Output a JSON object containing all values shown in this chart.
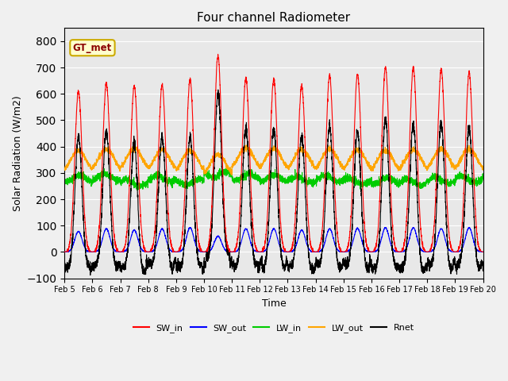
{
  "title": "Four channel Radiometer",
  "xlabel": "Time",
  "ylabel": "Solar Radiation (W/m2)",
  "ylim": [
    -100,
    850
  ],
  "yticks": [
    -100,
    0,
    100,
    200,
    300,
    400,
    500,
    600,
    700,
    800
  ],
  "start_day": 5,
  "end_day": 20,
  "n_days": 15,
  "points_per_day": 288,
  "colors": {
    "SW_in": "#ff0000",
    "SW_out": "#0000ff",
    "LW_in": "#00cc00",
    "LW_out": "#ffa500",
    "Rnet": "#000000"
  },
  "legend_label": "GT_met",
  "background_color": "#e8e8e8",
  "SW_in_peaks": [
    610,
    640,
    630,
    635,
    655,
    745,
    660,
    655,
    630,
    670,
    675,
    700,
    700,
    695,
    680
  ],
  "SW_out_peaks": [
    78,
    88,
    83,
    88,
    92,
    60,
    88,
    88,
    83,
    88,
    90,
    92,
    92,
    88,
    92
  ],
  "LW_in_base": [
    278,
    285,
    262,
    278,
    265,
    295,
    285,
    280,
    275,
    278,
    268,
    270,
    265,
    272,
    275
  ],
  "LW_out_base": [
    315,
    320,
    322,
    318,
    315,
    300,
    325,
    322,
    318,
    320,
    318,
    315,
    318,
    320,
    320
  ],
  "Rnet_night_level": -50,
  "linewidth": 0.8
}
